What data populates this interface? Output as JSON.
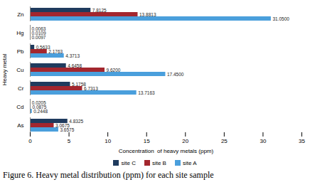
{
  "chart_data": {
    "type": "bar",
    "orientation": "horizontal",
    "title": "Figure 6.     Heavy metal distribution (ppm) for each site sample",
    "x_label": "Concentration  of heavy metals (ppm)",
    "y_label": "Heavy metal",
    "categories": [
      "As",
      "Cd",
      "Cr",
      "Cu",
      "Pb",
      "Hg",
      "Zn"
    ],
    "series": [
      {
        "name": "site C",
        "color": "#1f3b5e",
        "values": [
          4.8325,
          0.0205,
          5.1758,
          4.6458,
          0.5633,
          0.0063,
          7.8125
        ],
        "value_labels": [
          "4.8325",
          "0.0205",
          "5.1758",
          "4.6458",
          "0.5633",
          "0.0063",
          "7.8125"
        ]
      },
      {
        "name": "site B",
        "color": "#a3262e",
        "values": [
          3.0675,
          0.0875,
          6.7313,
          9.62,
          2.1763,
          0.0109,
          13.8813
        ],
        "value_labels": [
          "3.0675",
          "0.0875",
          "6.7313",
          "9.6200",
          "2.1763",
          "0.0109",
          "13.8813"
        ]
      },
      {
        "name": "site A",
        "color": "#4a9fdc",
        "values": [
          3.6575,
          0.2448,
          13.7163,
          17.45,
          4.3713,
          0.0097,
          31.05
        ],
        "value_labels": [
          "3.6575",
          "0.2448",
          "13.7163",
          "17.4500",
          "4.3713",
          "0.0097",
          "31.0500"
        ]
      }
    ],
    "xlim": [
      0,
      35
    ],
    "xticks": [
      0,
      5,
      10,
      15,
      20,
      25,
      30,
      35
    ],
    "data_labels": true,
    "grid": false,
    "legend": "bottom"
  }
}
